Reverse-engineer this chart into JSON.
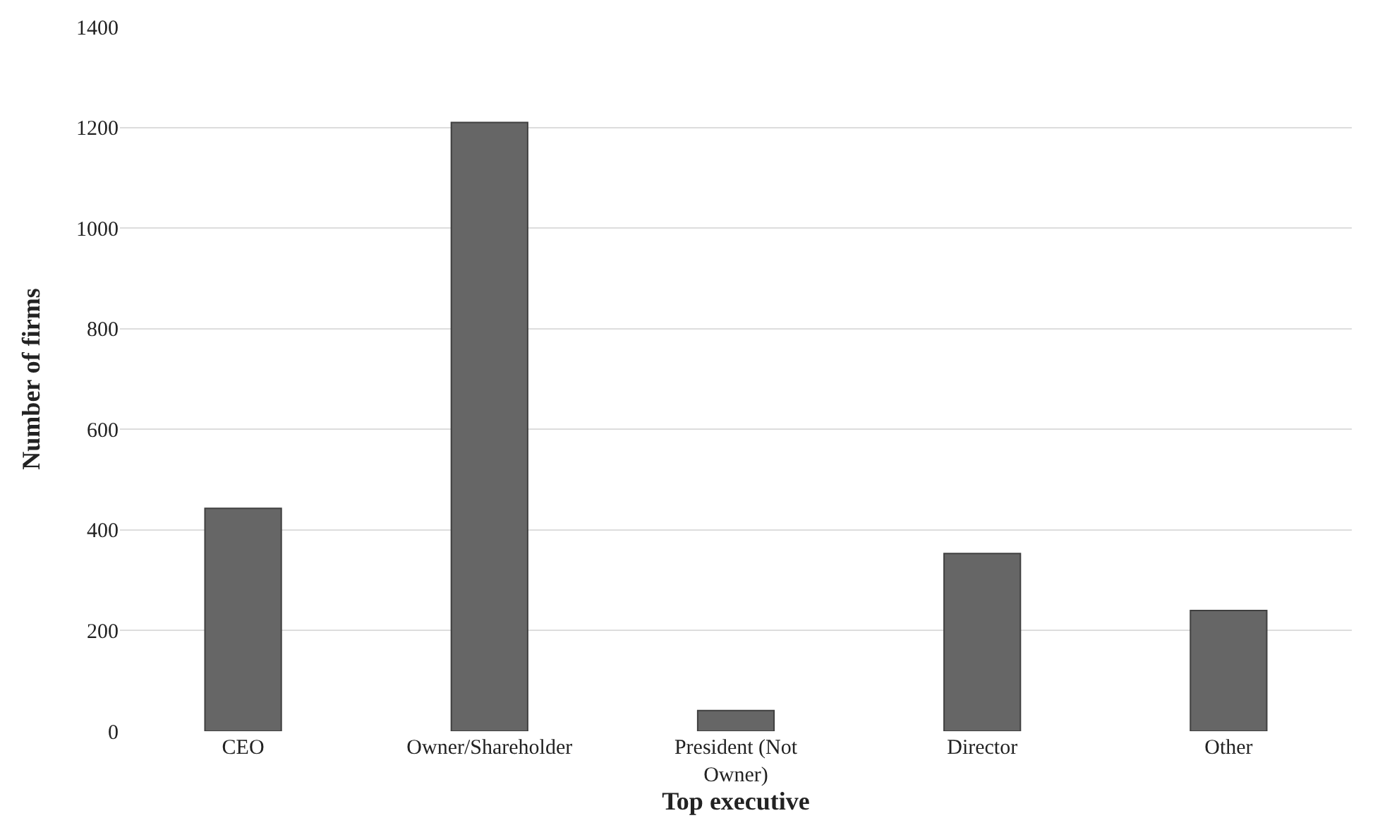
{
  "chart_data": {
    "type": "bar",
    "xlabel": "Top executive",
    "ylabel": "Number of firms",
    "categories": [
      "CEO",
      "Owner/Shareholder",
      "President (Not Owner)",
      "Director",
      "Other"
    ],
    "values": [
      443,
      1210,
      41,
      353,
      240
    ],
    "color": "#666666",
    "ylim": [
      0,
      1400
    ],
    "yticks": [
      0,
      200,
      400,
      600,
      800,
      1000,
      1200,
      1400
    ],
    "grid": "y",
    "legend": false
  }
}
